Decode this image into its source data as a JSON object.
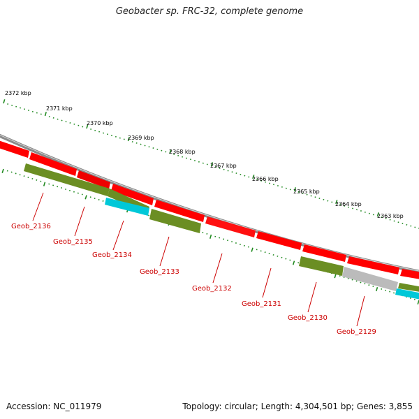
{
  "title": "Geobacter sp. FRC-32, complete genome",
  "accession": "Accession: NC_011979",
  "summary": "Topology: circular; Length: 4,304,501 bp; Genes: 3,855",
  "colors": {
    "backbone": "#8a8a8a",
    "gene_forward": "#ff0000",
    "gene_reverse": "#6b8e23",
    "gene_cyan": "#00c8d8",
    "gene_gray": "#bbbbbb",
    "tick": "#228b22",
    "label": "#cc0000"
  },
  "scale_labels": [
    "2372 kbp",
    "2371 kbp",
    "2370 kbp",
    "2369 kbp",
    "2368 kbp",
    "2367 kbp",
    "2366 kbp",
    "2365 kbp",
    "2364 kbp",
    "2363 kbp"
  ],
  "gene_labels": [
    "Geob_2136",
    "Geob_2135",
    "Geob_2134",
    "Geob_2133",
    "Geob_2132",
    "Geob_2131",
    "Geob_2130",
    "Geob_2129"
  ]
}
